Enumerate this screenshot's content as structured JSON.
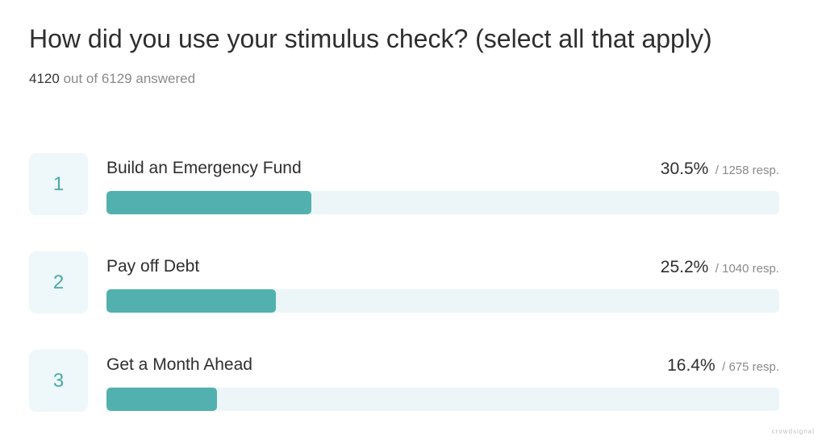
{
  "title": "How did you use your stimulus check? (select all that apply)",
  "summary": {
    "answered": "4120",
    "rest": "out of 6129 answered"
  },
  "chart_data": {
    "type": "bar",
    "title": "How did you use your stimulus check? (select all that apply)",
    "orientation": "horizontal",
    "categories": [
      "Build an Emergency Fund",
      "Pay off Debt",
      "Get a Month Ahead"
    ],
    "values": [
      30.5,
      25.2,
      16.4
    ],
    "unit": "%",
    "ylim": [
      0,
      100
    ],
    "rows": [
      {
        "rank": "1",
        "label": "Build an Emergency Fund",
        "percent": 30.5,
        "percent_text": "30.5%",
        "responses": "/ 1258 resp."
      },
      {
        "rank": "2",
        "label": "Pay off Debt",
        "percent": 25.2,
        "percent_text": "25.2%",
        "responses": "/ 1040 resp."
      },
      {
        "rank": "3",
        "label": "Get a Month Ahead",
        "percent": 16.4,
        "percent_text": "16.4%",
        "responses": "/ 675 resp."
      }
    ],
    "colors": {
      "bar": "#52b1ae",
      "track": "#ecf6f8",
      "rank_bg": "#eef7f9",
      "rank_text": "#4aa9a9"
    }
  },
  "watermark": "crowdsignal"
}
